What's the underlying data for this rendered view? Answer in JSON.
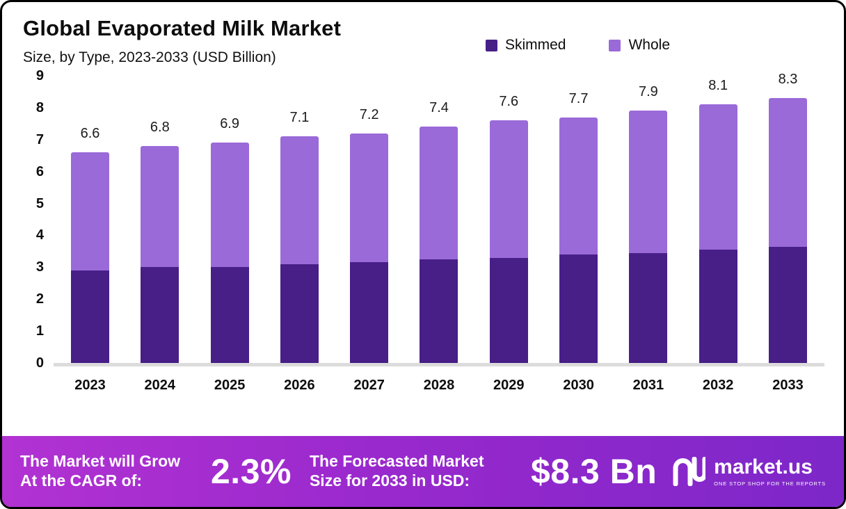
{
  "header": {
    "title": "Global Evaporated Milk Market",
    "subtitle": "Size, by Type, 2023-2033 (USD Billion)"
  },
  "legend": [
    {
      "label": "Skimmed",
      "color": "#481E87"
    },
    {
      "label": "Whole",
      "color": "#9A6AD8"
    }
  ],
  "chart_data": {
    "type": "bar",
    "stacked": true,
    "title": "Global Evaporated Milk Market",
    "subtitle": "Size, by Type, 2023-2033 (USD Billion)",
    "categories": [
      "2023",
      "2024",
      "2025",
      "2026",
      "2027",
      "2028",
      "2029",
      "2030",
      "2031",
      "2032",
      "2033"
    ],
    "series": [
      {
        "name": "Skimmed",
        "color": "#481E87",
        "values": [
          2.9,
          3.0,
          3.0,
          3.1,
          3.15,
          3.25,
          3.3,
          3.4,
          3.45,
          3.55,
          3.65
        ]
      },
      {
        "name": "Whole",
        "color": "#9A6AD8",
        "values": [
          3.7,
          3.8,
          3.9,
          4.0,
          4.05,
          4.15,
          4.3,
          4.3,
          4.45,
          4.55,
          4.65
        ]
      }
    ],
    "totals": [
      6.6,
      6.8,
      6.9,
      7.1,
      7.2,
      7.4,
      7.6,
      7.7,
      7.9,
      8.1,
      8.3
    ],
    "ylim": [
      0,
      9
    ],
    "yticks": [
      0,
      1,
      2,
      3,
      4,
      5,
      6,
      7,
      8,
      9
    ],
    "grid": false,
    "legend_position": "top-right"
  },
  "footer": {
    "cagr_label": "The Market will Grow At the CAGR of:",
    "cagr_value": "2.3%",
    "forecast_label": "The Forecasted Market Size for 2033 in USD:",
    "forecast_value": "$8.3 Bn",
    "brand": "market.us",
    "brand_tagline": "ONE STOP SHOP FOR THE REPORTS"
  }
}
